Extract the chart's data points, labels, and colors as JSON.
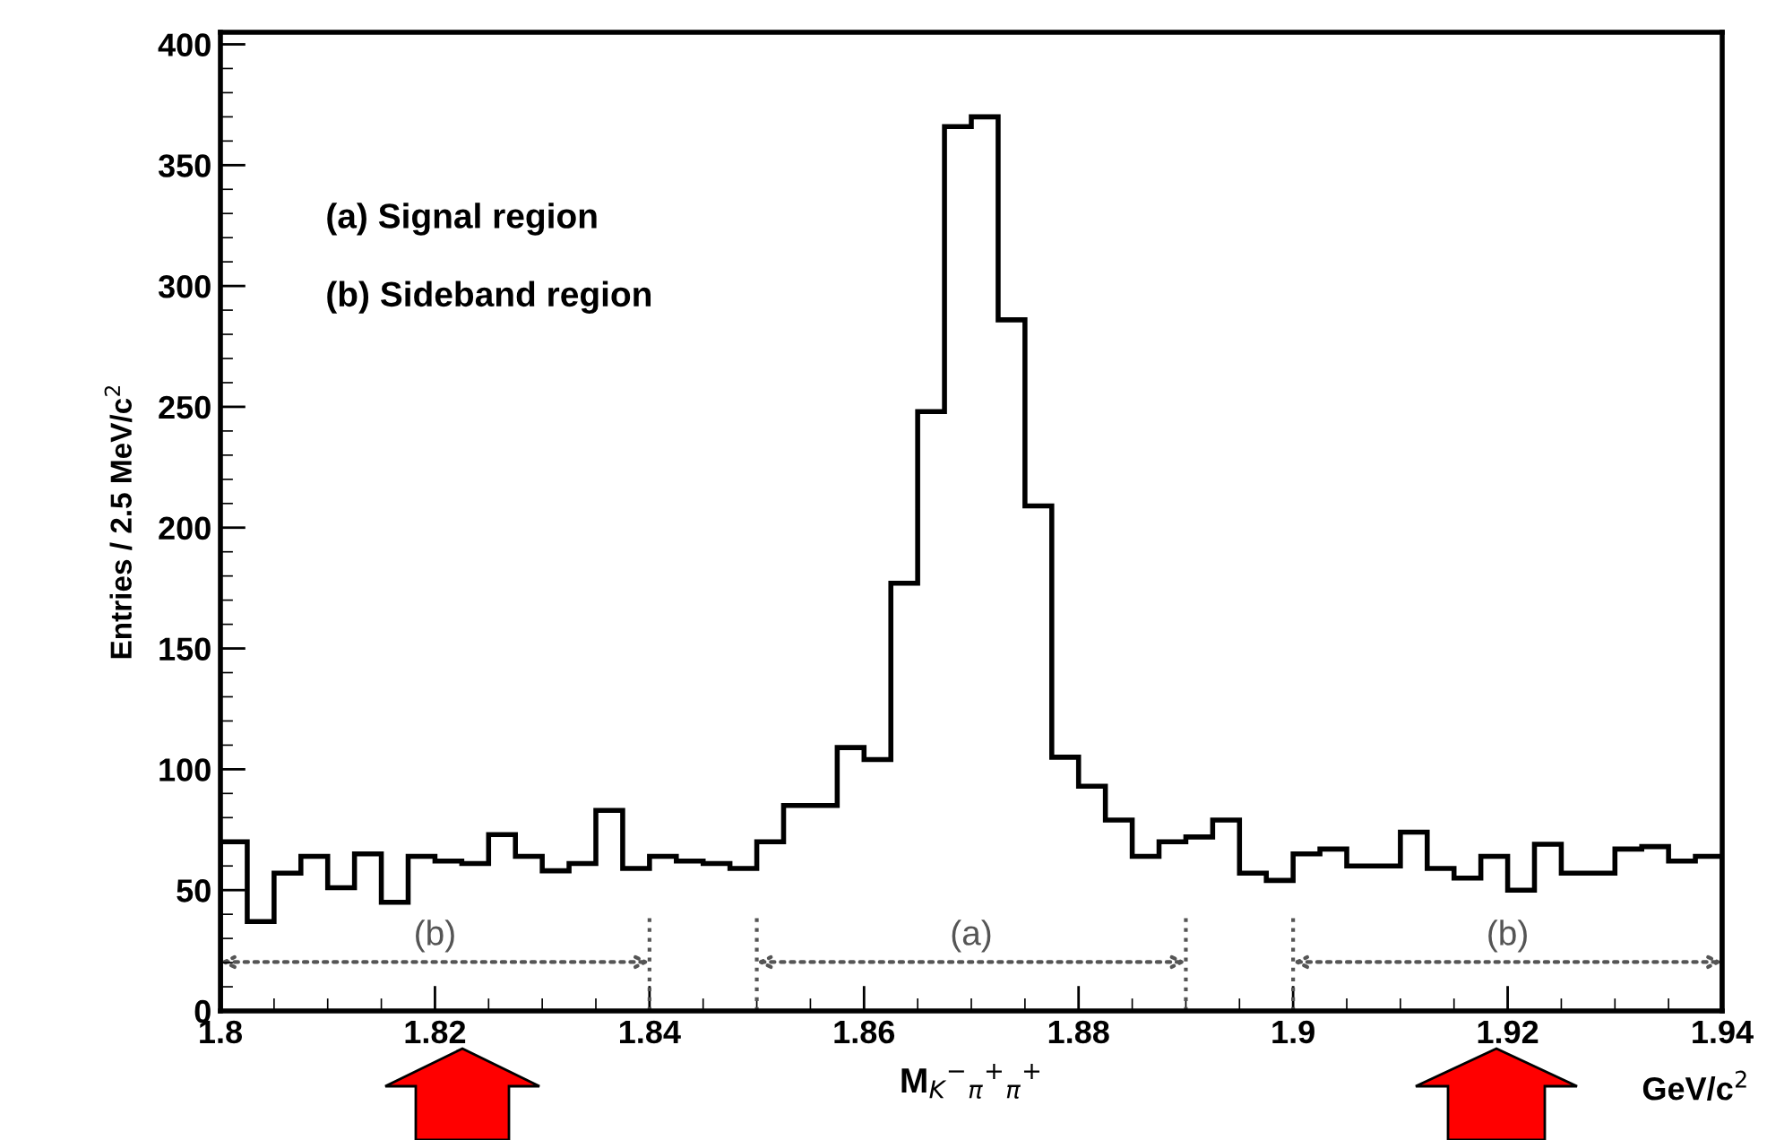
{
  "chart_data": {
    "type": "histogram",
    "xlabel": "M$_{K}$$^{−}$$_{π}$$^{+}$$_{π}$$^{+}$",
    "ylabel": "Entries / 2.5 MeV/c$^{2}$",
    "annotations": [
      "(a) Signal region",
      "(b) Sideband region",
      "GeV/c$^{2}$",
      "(b)",
      "(a)",
      "(b)"
    ],
    "bins": [
      1.8,
      1.8025,
      1.805,
      1.8075,
      1.81,
      1.8125,
      1.815,
      1.8175,
      1.82,
      1.8225,
      1.825,
      1.8275,
      1.83,
      1.8325,
      1.835,
      1.8375,
      1.84,
      1.8425,
      1.845,
      1.8475,
      1.85,
      1.8525,
      1.855,
      1.8575,
      1.86,
      1.8625,
      1.865,
      1.8675,
      1.87,
      1.8725,
      1.875,
      1.8775,
      1.88,
      1.8825,
      1.885,
      1.8875,
      1.89,
      1.8925,
      1.895,
      1.8975,
      1.9,
      1.9025,
      1.905,
      1.9075,
      1.91,
      1.9125,
      1.915,
      1.9175,
      1.92,
      1.9225,
      1.925,
      1.9275,
      1.93,
      1.9325,
      1.935,
      1.9375,
      1.94
    ],
    "values": [
      70,
      37,
      57,
      64,
      51,
      65,
      45,
      64,
      62,
      61,
      73,
      64,
      58,
      61,
      83,
      59,
      64,
      62,
      61,
      59,
      70,
      85,
      85,
      109,
      104,
      177,
      248,
      366,
      370,
      286,
      209,
      105,
      93,
      79,
      64,
      70,
      72,
      79,
      57,
      54,
      65,
      67,
      60,
      60,
      74,
      59,
      55,
      64,
      50,
      69,
      57,
      57,
      67,
      68,
      62,
      64
    ],
    "color": "#000000",
    "xlim": [
      1.8,
      1.94
    ],
    "ylim": [
      0,
      405
    ],
    "xticks": [
      1.8,
      1.82,
      1.84,
      1.86,
      1.88,
      1.9,
      1.92,
      1.94
    ],
    "yticks": [
      0,
      50,
      100,
      150,
      200,
      250,
      300,
      350,
      400
    ],
    "ref_lines": [
      {
        "axis": "x",
        "value": 1.84,
        "line_style": "dotted",
        "color": "#555555"
      },
      {
        "axis": "x",
        "value": 1.85,
        "line_style": "dotted",
        "color": "#555555"
      },
      {
        "axis": "x",
        "value": 1.89,
        "line_style": "dotted",
        "color": "#555555"
      },
      {
        "axis": "x",
        "value": 1.9,
        "line_style": "dotted",
        "color": "#555555"
      }
    ]
  }
}
